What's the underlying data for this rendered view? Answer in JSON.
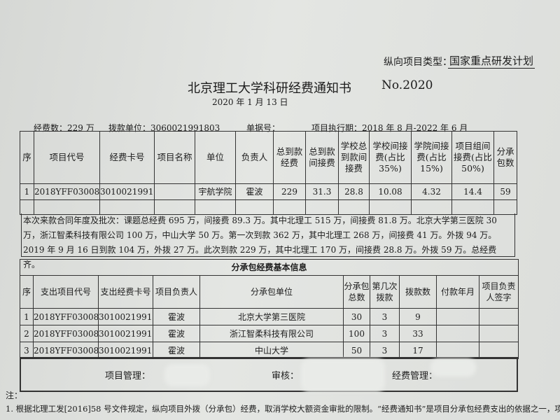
{
  "header": {
    "type_label": "纵向项目类型：",
    "type_value": "国家重点研发计划",
    "title": "北京理工大学科研经费通知书",
    "number": "No.2020",
    "date": "2020 年 1 月 13 日"
  },
  "meta": {
    "amount": "经费数：229 万",
    "payer": "拨款单位：3060021991803",
    "doc_no": "单据号：",
    "period": "项目执行期：2018 年 8 月-2022 年 6 月"
  },
  "main_table": {
    "headers": [
      "序",
      "项目代号",
      "经费卡号",
      "项目名称",
      "单位",
      "负责人",
      "总到款经费",
      "总到款间接费",
      "学校总到款间接费",
      "学校间接费(占比 35%)",
      "学院间接费(占比 15%)",
      "项目组间接费(占比 50%)",
      "分承包数"
    ],
    "rows": [
      [
        "1",
        "2018YFF0300805",
        "3010021991803",
        "",
        "宇航学院",
        "霍波",
        "229",
        "31.3",
        "28.8",
        "10.08",
        "4.32",
        "14.4",
        "59"
      ]
    ]
  },
  "note": "本次来款合同年度及批次：课题总经费 695 万，间接费 89.3 万。其中北理工 515 万，间接费 81.8 万。北京大学第三医院 30 万，浙江智柔科技有限公司 100 万，中山大学 50 万。第一次到款 362 万，其中北理工 268 万，间接费 41 万。外拨 94 万。2019 年 9 月 16 日到款 104 万，外拨 27 万。此次到款 229 万，其中北理工 170 万，间接费 28.8 万。外拨 59 万。总经费齐。",
  "sub_table": {
    "title": "分承包经费基本信息",
    "headers": [
      "序",
      "支出项目代号",
      "支出经费卡号",
      "项目负责人",
      "分承包单位",
      "分承包总数",
      "第几次拨款",
      "拨款数",
      "付款年月",
      "项目负责人签字"
    ],
    "rows": [
      [
        "1",
        "2018YFF0300805",
        "3010021991803",
        "霍波",
        "北京大学第三医院",
        "30",
        "3",
        "9",
        "",
        ""
      ],
      [
        "2",
        "2018YFF0300805",
        "3010021991803",
        "霍波",
        "浙江智柔科技有限公司",
        "100",
        "3",
        "33",
        "",
        ""
      ],
      [
        "3",
        "2018YFF0300805",
        "3010021991803",
        "霍波",
        "中山大学",
        "50",
        "3",
        "17",
        "",
        ""
      ]
    ]
  },
  "signatures": {
    "project_mgmt": "项目管理：",
    "review": "审核：",
    "finance_mgmt": "经费管理："
  },
  "notes": {
    "heading": "注：",
    "item1": "1. 根据北理工发[2016]58 号文件规定，纵向项目外拨（分承包）经费，取消学校大额资金审批的限制。“经费通知书”是项目分承包经费支出的依据之一，项"
  }
}
